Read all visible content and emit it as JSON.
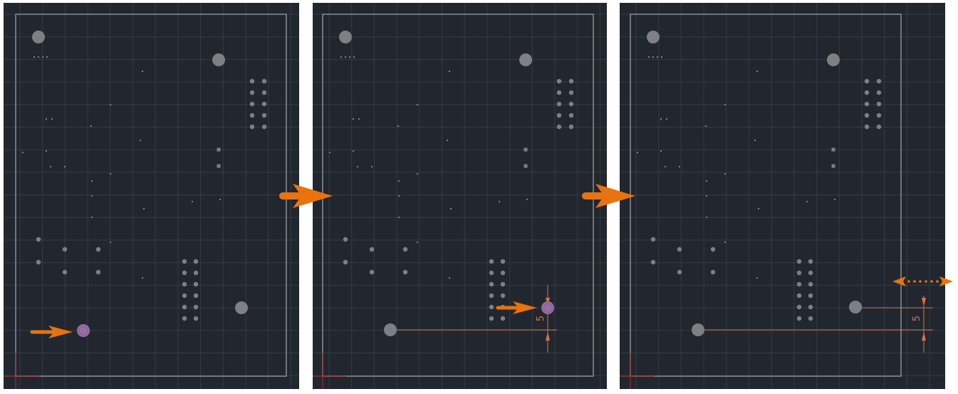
{
  "panels": [
    {
      "name": "step-1-select-hole",
      "dimension_label": ""
    },
    {
      "name": "step-2-dimension",
      "dimension_label": "5"
    },
    {
      "name": "step-3-move",
      "dimension_label": "5"
    }
  ],
  "colors": {
    "canvas": "#22272f",
    "grid": "#343a44",
    "board_outline": "#8a8d94",
    "pad": "#7d8087",
    "highlight": "#c43fd0",
    "dimension": "#d8734a",
    "annotation_arrow": "#e8730f",
    "origin_axis": "#b03030"
  },
  "icons": [
    "step-arrow-icon",
    "pointer-arrow-icon",
    "move-horizontal-icon"
  ]
}
